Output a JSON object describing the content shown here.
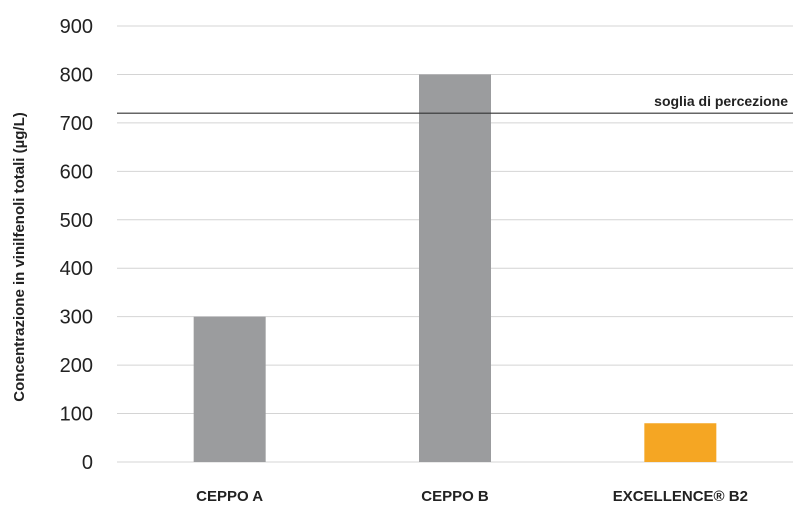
{
  "chart_data": {
    "type": "bar",
    "categories": [
      "CEPPO A",
      "CEPPO B",
      "EXCELLENCE® B2"
    ],
    "values": [
      300,
      800,
      80
    ],
    "bar_colors": [
      "#9b9c9e",
      "#9b9c9e",
      "#f5a623"
    ],
    "ylabel": "Concentrazione in vinilfenoli totali (µg/L)",
    "ylim": [
      0,
      900
    ],
    "yticks": [
      0,
      100,
      200,
      300,
      400,
      500,
      600,
      700,
      800,
      900
    ],
    "grid": true,
    "reference_line": {
      "value": 720,
      "label": "soglia di percezione",
      "color": "#333333"
    }
  }
}
